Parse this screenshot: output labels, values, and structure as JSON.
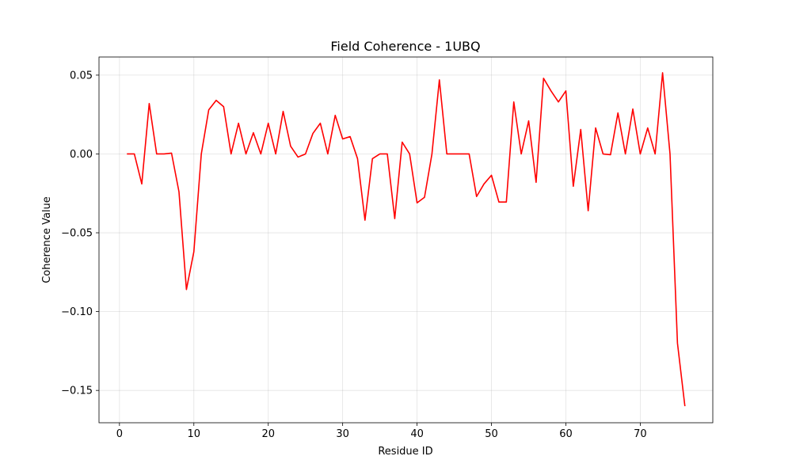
{
  "chart_data": {
    "type": "line",
    "title": "Field Coherence - 1UBQ",
    "xlabel": "Residue ID",
    "ylabel": "Coherence Value",
    "xlim": [
      -2.75,
      79.75
    ],
    "ylim": [
      -0.1705,
      0.0615
    ],
    "grid": true,
    "xticks": [
      0,
      10,
      20,
      30,
      40,
      50,
      60,
      70
    ],
    "xtick_labels": [
      "0",
      "10",
      "20",
      "30",
      "40",
      "50",
      "60",
      "70"
    ],
    "yticks": [
      0.05,
      0.0,
      -0.05,
      -0.1,
      -0.15
    ],
    "ytick_labels": [
      "0.05",
      "0.00",
      "−0.05",
      "−0.10",
      "−0.15"
    ],
    "series": [
      {
        "color": "#ff0000",
        "x": [
          1,
          2,
          3,
          4,
          5,
          6,
          7,
          8,
          9,
          10,
          11,
          12,
          13,
          14,
          15,
          16,
          17,
          18,
          19,
          20,
          21,
          22,
          23,
          24,
          25,
          26,
          27,
          28,
          29,
          30,
          31,
          32,
          33,
          34,
          35,
          36,
          37,
          38,
          39,
          40,
          41,
          42,
          43,
          44,
          45,
          46,
          47,
          48,
          49,
          50,
          51,
          52,
          53,
          54,
          55,
          56,
          57,
          58,
          59,
          60,
          61,
          62,
          63,
          64,
          65,
          66,
          67,
          68,
          69,
          70,
          71,
          72,
          73,
          74,
          75,
          76
        ],
        "y": [
          0.0,
          0.0,
          -0.019,
          0.032,
          0.0,
          0.0,
          0.0005,
          -0.024,
          -0.086,
          -0.062,
          0.0,
          0.028,
          0.034,
          0.03,
          0.0,
          0.0195,
          0.0,
          0.0135,
          0.0,
          0.0195,
          0.0,
          0.027,
          0.005,
          -0.002,
          0.0,
          0.013,
          0.0195,
          0.0,
          0.0245,
          0.0095,
          0.011,
          -0.003,
          -0.042,
          -0.003,
          0.0,
          0.0,
          -0.041,
          0.0075,
          0.0,
          -0.031,
          -0.0275,
          0.0,
          0.047,
          0.0,
          0.0,
          0.0,
          0.0,
          -0.027,
          -0.019,
          -0.0135,
          -0.0305,
          -0.0305,
          0.033,
          0.0,
          0.021,
          -0.018,
          0.048,
          0.04,
          0.033,
          0.04,
          -0.0205,
          0.0155,
          -0.036,
          0.0165,
          0.0,
          -0.0005,
          0.026,
          0.0,
          0.0285,
          0.0,
          0.0165,
          0.0,
          0.0515,
          0.0,
          -0.12,
          -0.16
        ]
      }
    ]
  }
}
